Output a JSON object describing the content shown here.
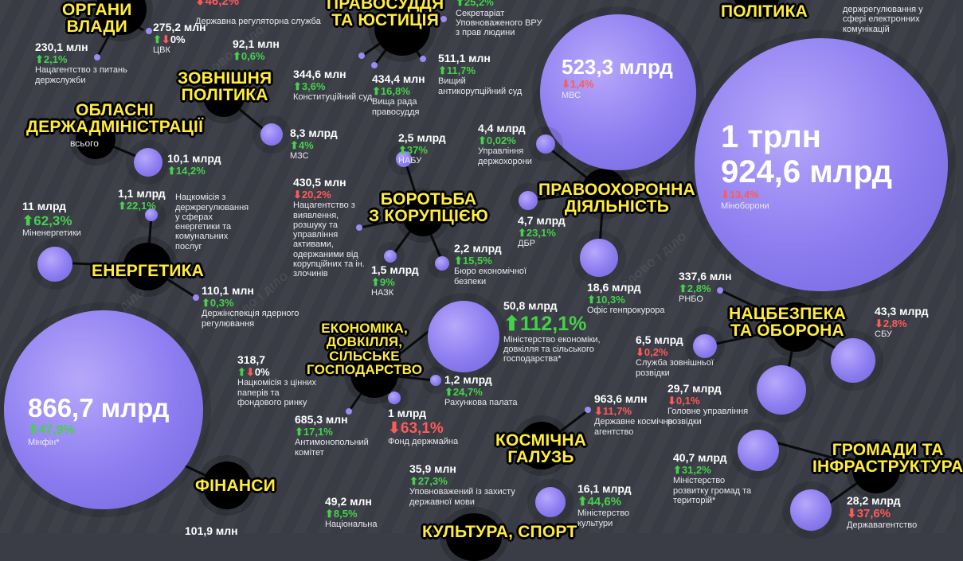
{
  "categories": {
    "organy": [
      "ОРГАНИ",
      "ВЛАДИ"
    ],
    "pravosuddia": [
      "ПРАВОСУДДЯ",
      "ТА ЮСТИЦІЯ"
    ],
    "polityka_top": [
      "ПОЛІТИКА"
    ],
    "zovnishnia": [
      "ЗОВНІШНЯ",
      "ПОЛІТИКА"
    ],
    "oblasni": [
      "ОБЛАСНІ",
      "ДЕРЖАДМІНІСТРАЦІЇ"
    ],
    "oblasni_total_label": "всього",
    "koruptsiia": [
      "БОРОТЬБА",
      "З КОРУПЦІЄЮ"
    ],
    "pravookhoronna": [
      "ПРАВООХОРОННА",
      "ДІЯЛЬНІСТЬ"
    ],
    "energetyka": [
      "ЕНЕРГЕТИКА"
    ],
    "ekonomika": [
      "ЕКОНОМІКА,",
      "ДОВКІЛЛЯ,",
      "СІЛЬСЬКЕ",
      "ГОСПОДАРСТВО"
    ],
    "natsbezpeka": [
      "НАЦБЕЗПЕКА",
      "ТА ОБОРОНА"
    ],
    "kosmichna": [
      "КОСМІЧНА",
      "ГАЛУЗЬ"
    ],
    "hromady": [
      "ГРОМАДИ ТА",
      "ІНФРАСТРУКТУРА"
    ],
    "finansy": [
      "ФІНАНСИ"
    ],
    "kultura": [
      "КУЛЬТУРА, СПОРТ"
    ]
  },
  "items": {
    "derzhreg": {
      "amount": "",
      "pct": "46,2%",
      "dir": "down",
      "name": "Державна регуляторна служба"
    },
    "cvk": {
      "amount": "275,2 млн",
      "pct": "0%",
      "dir": "zero",
      "name": "ЦВК"
    },
    "natsderzhsluzhba": {
      "amount": "230,1 млн",
      "pct": "2,1%",
      "dir": "up",
      "name": "Нацагентство з питань держслужби"
    },
    "sekretariat": {
      "amount": "",
      "pct": "25,2%",
      "dir": "up",
      "name": "Секретаріат Уповноваженого ВРУ з прав людини"
    },
    "elektr": {
      "amount": "",
      "pct": "",
      "dir": "",
      "name": "держрегулювання у сфері електронних комунікацій"
    },
    "unknown92": {
      "amount": "92,1 млн",
      "pct": "0,6%",
      "dir": "up",
      "name": ""
    },
    "vaks": {
      "amount": "511,1 млн",
      "pct": "11,7%",
      "dir": "up",
      "name": "Вищий антикорупційний суд"
    },
    "konstsud": {
      "amount": "344,6 млн",
      "pct": "3,6%",
      "dir": "up",
      "name": "Конституційний суд"
    },
    "vrp": {
      "amount": "434,4 млн",
      "pct": "16,8%",
      "dir": "up",
      "name": "Вища рада правосуддя"
    },
    "mvs": {
      "amount": "523,3 млрд",
      "pct": "1,4%",
      "dir": "down",
      "name": "МВС"
    },
    "minoborony": {
      "amount_line1": "1 трлн",
      "amount_line2": "924,6 млрд",
      "pct": "13,4%",
      "dir": "down",
      "name": "Міноборони"
    },
    "mzs": {
      "amount": "8,3 млрд",
      "pct": "4%",
      "dir": "up",
      "name": "МЗС"
    },
    "oda": {
      "amount": "10,1 млрд",
      "pct": "14,2%",
      "dir": "up",
      "name": ""
    },
    "nabu": {
      "amount": "2,5 млрд",
      "pct": "37%",
      "dir": "up",
      "name": "НАБУ"
    },
    "derzhokhorona": {
      "amount": "4,4 млрд",
      "pct": "0,02%",
      "dir": "up",
      "name": "Управління держохорони"
    },
    "nkrekp": {
      "amount": "1,1 млрд",
      "pct": "22,1%",
      "dir": "up",
      "name": "Нацкомісія з держрегулювання у сферах енергетики та комунальних послуг"
    },
    "minenergo": {
      "amount": "11 млрд",
      "pct": "62,3%",
      "dir": "up",
      "name": "Міненергетики"
    },
    "arma": {
      "amount": "430,5 млн",
      "pct": "20,2%",
      "dir": "down",
      "name": "Нацагентство з виявлення, розшуку та управління активами, одержаними від корупційних та ін. злочинів"
    },
    "dbr": {
      "amount": "4,7 млрд",
      "pct": "23,1%",
      "dir": "up",
      "name": "ДБР"
    },
    "beb": {
      "amount": "2,2 млрд",
      "pct": "15,5%",
      "dir": "up",
      "name": "Бюро економічної безпеки"
    },
    "nazk": {
      "amount": "1,5 млрд",
      "pct": "9%",
      "dir": "up",
      "name": "НАЗК"
    },
    "genprok": {
      "amount": "18,6 млрд",
      "pct": "10,3%",
      "dir": "up",
      "name": "Офіс генпрокурора"
    },
    "rnbo": {
      "amount": "337,6 млн",
      "pct": "2,8%",
      "dir": "up",
      "name": "РНБО"
    },
    "sbu": {
      "amount": "43,3 млрд",
      "pct": "2,8%",
      "dir": "down",
      "name": "СБУ"
    },
    "dinz": {
      "amount": "110,1 млн",
      "pct": "0,3%",
      "dir": "up",
      "name": "Держінспекція ядерного регулювання"
    },
    "mineconomiky": {
      "amount": "50,8 млрд",
      "pct": "112,1%",
      "dir": "up",
      "name": "Міністерство економіки, довкілля та сільського господарства*"
    },
    "szr": {
      "amount": "6,5 млрд",
      "pct": "0,2%",
      "dir": "down",
      "name": "Служба зовнішньої розвідки"
    },
    "nkcpfr": {
      "amount": "318,7",
      "pct": "0%",
      "dir": "zero",
      "name": "Нацкомісія з цінних паперів та фондового ринку"
    },
    "rakhunkova": {
      "amount": "1,2 млрд",
      "pct": "24,7%",
      "dir": "up",
      "name": "Рахункова палата"
    },
    "hur": {
      "amount": "29,7 млрд",
      "pct": "0,1%",
      "dir": "down",
      "name": "Головне управління розвідки"
    },
    "amku": {
      "amount": "685,3 млн",
      "pct": "17,1%",
      "dir": "up",
      "name": "Антимонопольний комітет"
    },
    "fdm": {
      "amount": "1 млрд",
      "pct": "63,1%",
      "dir": "down",
      "name": "Фонд держмайна"
    },
    "dka": {
      "amount": "963,6 млн",
      "pct": "11,7%",
      "dir": "down",
      "name": "Державне космічне агентство"
    },
    "minfin": {
      "amount": "866,7 млрд",
      "pct": "47,9%",
      "dir": "up",
      "name": "Мінфін*"
    },
    "movnyi": {
      "amount": "35,9 млн",
      "pct": "27,3%",
      "dir": "up",
      "name": "Уповноважений із захисту державної мови"
    },
    "minrozvytku": {
      "amount": "40,7 млрд",
      "pct": "31,2%",
      "dir": "up",
      "name": "Міністерство розвитку громад та територій*"
    },
    "minkult": {
      "amount": "16,1 млрд",
      "pct": "44,6%",
      "dir": "up",
      "name": "Міністерство культури"
    },
    "natsionalna": {
      "amount": "49,2 млн",
      "pct": "8,5%",
      "dir": "up",
      "name": "Національна"
    },
    "derzhahentstvo": {
      "amount": "28,2 млрд",
      "pct": "37,6%",
      "dir": "down",
      "name": "Державагентство"
    },
    "bottom_cut": {
      "amount": "101,9 млн",
      "pct": "",
      "dir": "",
      "name": ""
    }
  },
  "watermark": "СЛОВО І ДІЛО",
  "colors": {
    "bubble": "#8c7cf0",
    "background": "#3a3d45",
    "up": "#46d14b",
    "down": "#ff5a5a",
    "category_text": "#ffec3d"
  }
}
